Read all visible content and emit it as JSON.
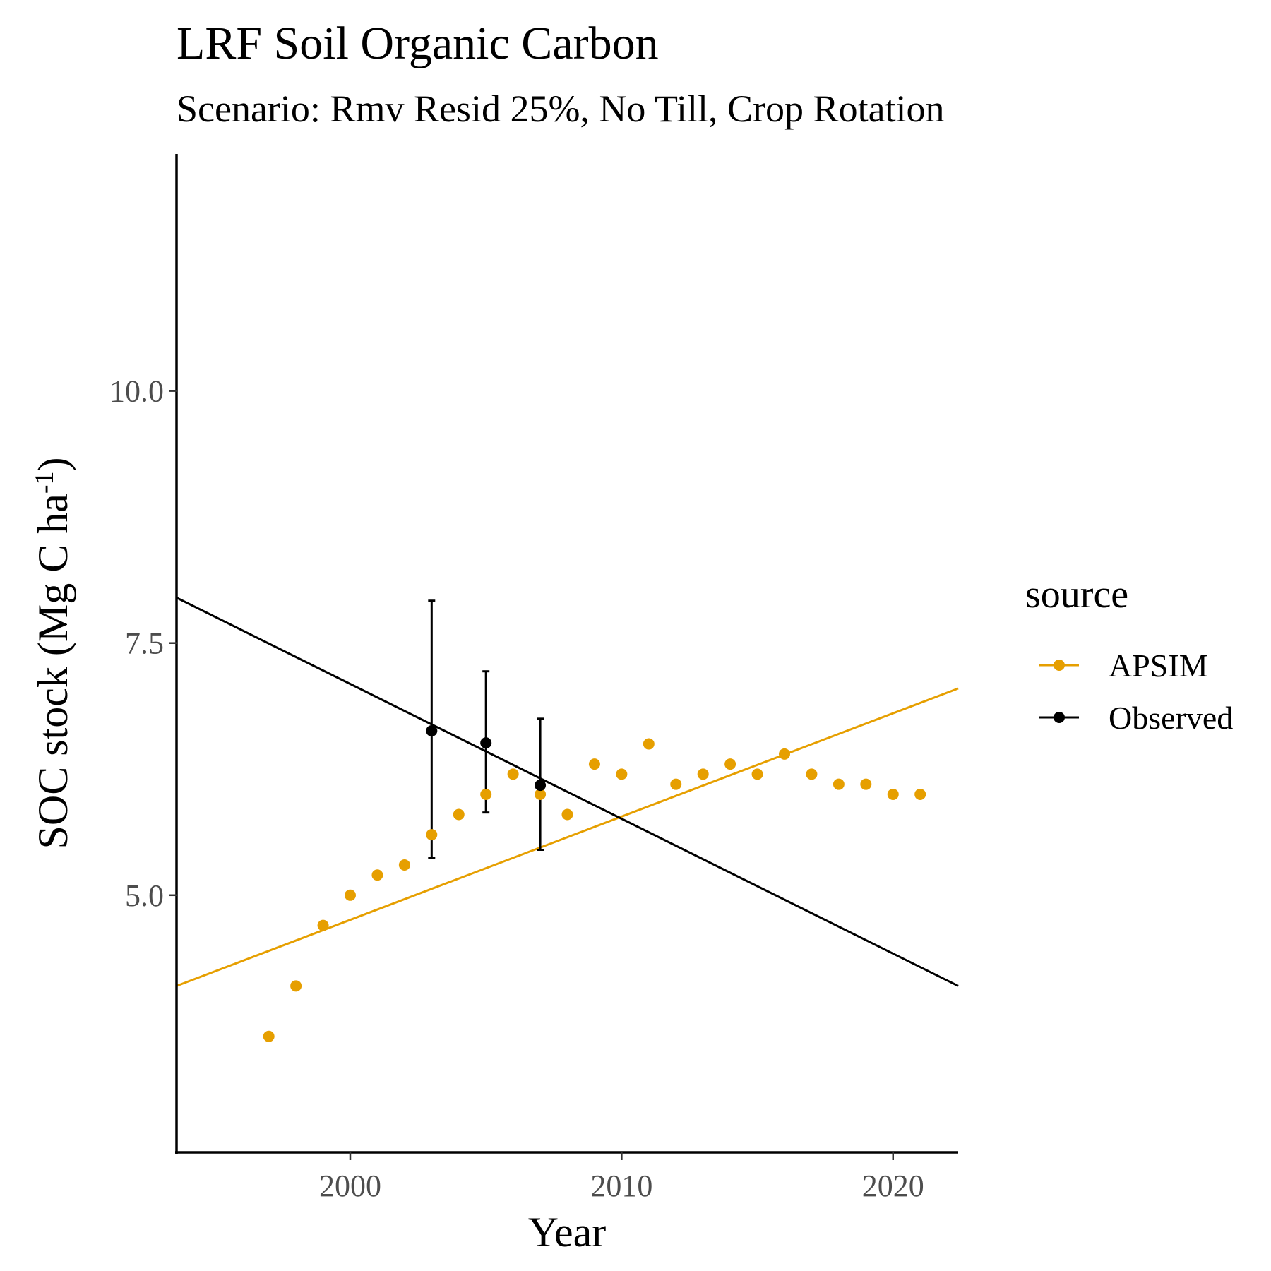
{
  "chart_data": {
    "type": "scatter",
    "title": "LRF Soil Organic Carbon",
    "subtitle": "Scenario: Rmv Resid 25%, No Till, Crop Rotation",
    "xlabel": "Year",
    "ylabel": "SOC stock (Mg C ha",
    "ylabel_superscript": "-1",
    "ylabel_suffix": ")",
    "xlim": [
      1993.6,
      2022.4
    ],
    "ylim": [
      2.45,
      12.35
    ],
    "x_ticks": [
      2000,
      2010,
      2020
    ],
    "x_tick_labels": [
      "2000",
      "2010",
      "2020"
    ],
    "y_ticks": [
      5.0,
      7.5,
      10.0
    ],
    "y_tick_labels": [
      "5.0",
      "7.5",
      "10.0"
    ],
    "grid": false,
    "legend": {
      "title": "source",
      "position": "right"
    },
    "series": [
      {
        "name": "APSIM",
        "color": "#E69F00",
        "points": [
          {
            "x": 1997,
            "y": 3.6
          },
          {
            "x": 1998,
            "y": 4.1
          },
          {
            "x": 1999,
            "y": 4.7
          },
          {
            "x": 2000,
            "y": 5.0
          },
          {
            "x": 2001,
            "y": 5.2
          },
          {
            "x": 2002,
            "y": 5.3
          },
          {
            "x": 2003,
            "y": 5.6
          },
          {
            "x": 2004,
            "y": 5.8
          },
          {
            "x": 2005,
            "y": 6.0
          },
          {
            "x": 2006,
            "y": 6.2
          },
          {
            "x": 2007,
            "y": 6.0
          },
          {
            "x": 2008,
            "y": 5.8
          },
          {
            "x": 2009,
            "y": 6.3
          },
          {
            "x": 2010,
            "y": 6.2
          },
          {
            "x": 2011,
            "y": 6.5
          },
          {
            "x": 2012,
            "y": 6.1
          },
          {
            "x": 2013,
            "y": 6.2
          },
          {
            "x": 2014,
            "y": 6.3
          },
          {
            "x": 2015,
            "y": 6.2
          },
          {
            "x": 2016,
            "y": 6.4
          },
          {
            "x": 2017,
            "y": 6.2
          },
          {
            "x": 2018,
            "y": 6.1
          },
          {
            "x": 2019,
            "y": 6.1
          },
          {
            "x": 2020,
            "y": 6.0
          },
          {
            "x": 2021,
            "y": 6.0
          }
        ],
        "trend": {
          "x": [
            1993.6,
            2022.4
          ],
          "y": [
            4.1,
            7.05
          ]
        }
      },
      {
        "name": "Observed",
        "color": "#000000",
        "points": [
          {
            "x": 2003,
            "y": 6.63,
            "ymin": 5.37,
            "ymax": 7.92
          },
          {
            "x": 2005,
            "y": 6.51,
            "ymin": 5.82,
            "ymax": 7.22
          },
          {
            "x": 2007,
            "y": 6.09,
            "ymin": 5.45,
            "ymax": 6.75
          }
        ],
        "trend": {
          "x": [
            1993.6,
            2022.4
          ],
          "y": [
            7.95,
            4.1
          ]
        }
      }
    ]
  }
}
